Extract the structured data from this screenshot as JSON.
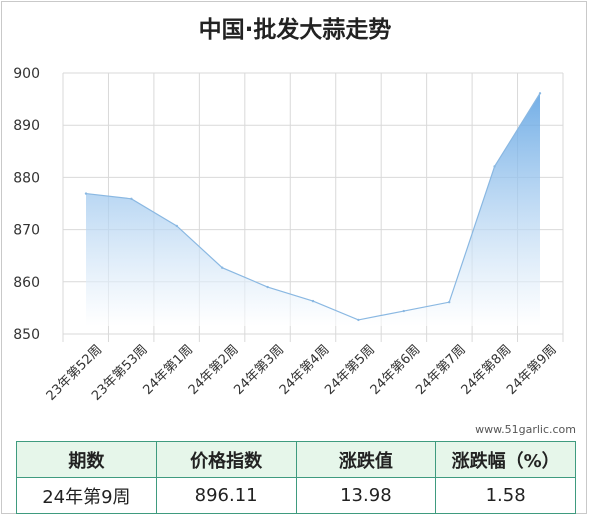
{
  "title": "中国·批发大蒜走势",
  "watermark": "www.51garlic.com",
  "chart_data": {
    "type": "area",
    "categories": [
      "23年第52周",
      "23年第53周",
      "24年第1周",
      "24年第2周",
      "24年第3周",
      "24年第4周",
      "24年第5周",
      "24年第6周",
      "24年第7周",
      "24年第8周",
      "24年第9周"
    ],
    "values": [
      876.9,
      875.9,
      870.7,
      862.7,
      859.0,
      856.3,
      852.7,
      854.4,
      856.1,
      882.1,
      896.1
    ],
    "ylim": [
      850,
      900
    ],
    "yticks": [
      850,
      860,
      870,
      880,
      890,
      900
    ],
    "grid": true,
    "legend": "none",
    "fill_color": "#7db4e6",
    "line_color": "#8ab8e2"
  },
  "table": {
    "headers": [
      "期数",
      "价格指数",
      "涨跌值",
      "涨跌幅（%）"
    ],
    "row": [
      "24年第9周",
      "896.11",
      "13.98",
      "1.58"
    ]
  }
}
